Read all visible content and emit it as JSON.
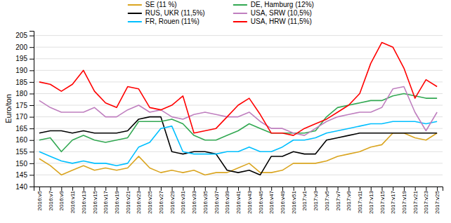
{
  "chart_data": {
    "type": "line",
    "ylabel": "Euro/ton",
    "ylim": [
      140,
      207
    ],
    "yticks": [
      140,
      145,
      150,
      155,
      160,
      165,
      170,
      175,
      180,
      185,
      190,
      195,
      200,
      205
    ],
    "grid": true,
    "legend": "top",
    "categories": [
      "2016:v5",
      "2016:v7",
      "2016:v9",
      "2016:v11",
      "2016:v13",
      "2016:v15",
      "2016:v17",
      "2016:v19",
      "2016:v21",
      "2016:v23",
      "2016:v25",
      "2016:v27",
      "2016:v29",
      "2016:v31",
      "2016:v33",
      "2016:v35",
      "2016:v37",
      "2016:v39",
      "2016:v41",
      "2016:v43",
      "2016:v45",
      "2016:v47",
      "2016:v49",
      "2016:v51",
      "2017:v1",
      "2017:v3",
      "2017:v5",
      "2017:v7",
      "2017:v9",
      "2017:v11",
      "2017:v13",
      "2017:v15",
      "2017:v17",
      "2017:v19",
      "2017:v21",
      "2017:v23",
      "2017:v25"
    ],
    "series": [
      {
        "name": "SE (11 %)",
        "color": "#DAA520",
        "values": [
          152,
          149,
          145,
          147,
          149,
          147,
          148,
          147,
          148,
          153,
          148,
          146,
          147,
          146,
          147,
          145,
          146,
          146,
          148,
          150,
          146,
          146,
          147,
          150,
          150,
          150,
          151,
          153,
          154,
          155,
          157,
          158,
          163,
          163,
          161,
          160,
          163
        ]
      },
      {
        "name": "RUS, UKR (11,5%)",
        "color": "#000000",
        "values": [
          163,
          164,
          164,
          163,
          164,
          163,
          163,
          163,
          164,
          169,
          170,
          170,
          155,
          154,
          155,
          155,
          154,
          147,
          146,
          147,
          145,
          153,
          153,
          155,
          154,
          154,
          160,
          161,
          162,
          163,
          163,
          163,
          163,
          163,
          163,
          163,
          163
        ]
      },
      {
        "name": "FR, Rouen (11%)",
        "color": "#00BFFF",
        "values": [
          155,
          153,
          151,
          150,
          151,
          150,
          150,
          149,
          150,
          157,
          159,
          165,
          166,
          155,
          154,
          154,
          154,
          155,
          155,
          157,
          155,
          155,
          157,
          160,
          160,
          161,
          163,
          164,
          165,
          166,
          167,
          167,
          168,
          168,
          168,
          167,
          168
        ]
      },
      {
        "name": "DE, Hamburg (12%)",
        "color": "#32a852",
        "values": [
          160,
          161,
          155,
          160,
          162,
          160,
          159,
          160,
          161,
          168,
          168,
          168,
          169,
          167,
          162,
          160,
          160,
          162,
          164,
          167,
          165,
          163,
          163,
          163,
          163,
          164,
          170,
          174,
          175,
          176,
          177,
          177,
          179,
          180,
          179,
          178,
          178
        ]
      },
      {
        "name": "USA, SRW (10,5%)",
        "color": "#BF7FBF",
        "values": [
          177,
          174,
          172,
          172,
          172,
          174,
          170,
          170,
          173,
          175,
          172,
          173,
          170,
          169,
          171,
          172,
          171,
          170,
          170,
          172,
          168,
          165,
          165,
          163,
          162,
          165,
          168,
          170,
          171,
          172,
          172,
          174,
          182,
          183,
          172,
          164,
          172
        ]
      },
      {
        "name": "USA, HRW (11,5%)",
        "color": "#FF0000",
        "values": [
          185,
          184,
          181,
          184,
          190,
          181,
          176,
          174,
          183,
          182,
          174,
          173,
          175,
          179,
          163,
          164,
          165,
          170,
          175,
          178,
          171,
          163,
          163,
          162,
          165,
          167,
          169,
          172,
          175,
          180,
          193,
          202,
          200,
          191,
          178,
          186,
          183
        ]
      }
    ]
  }
}
